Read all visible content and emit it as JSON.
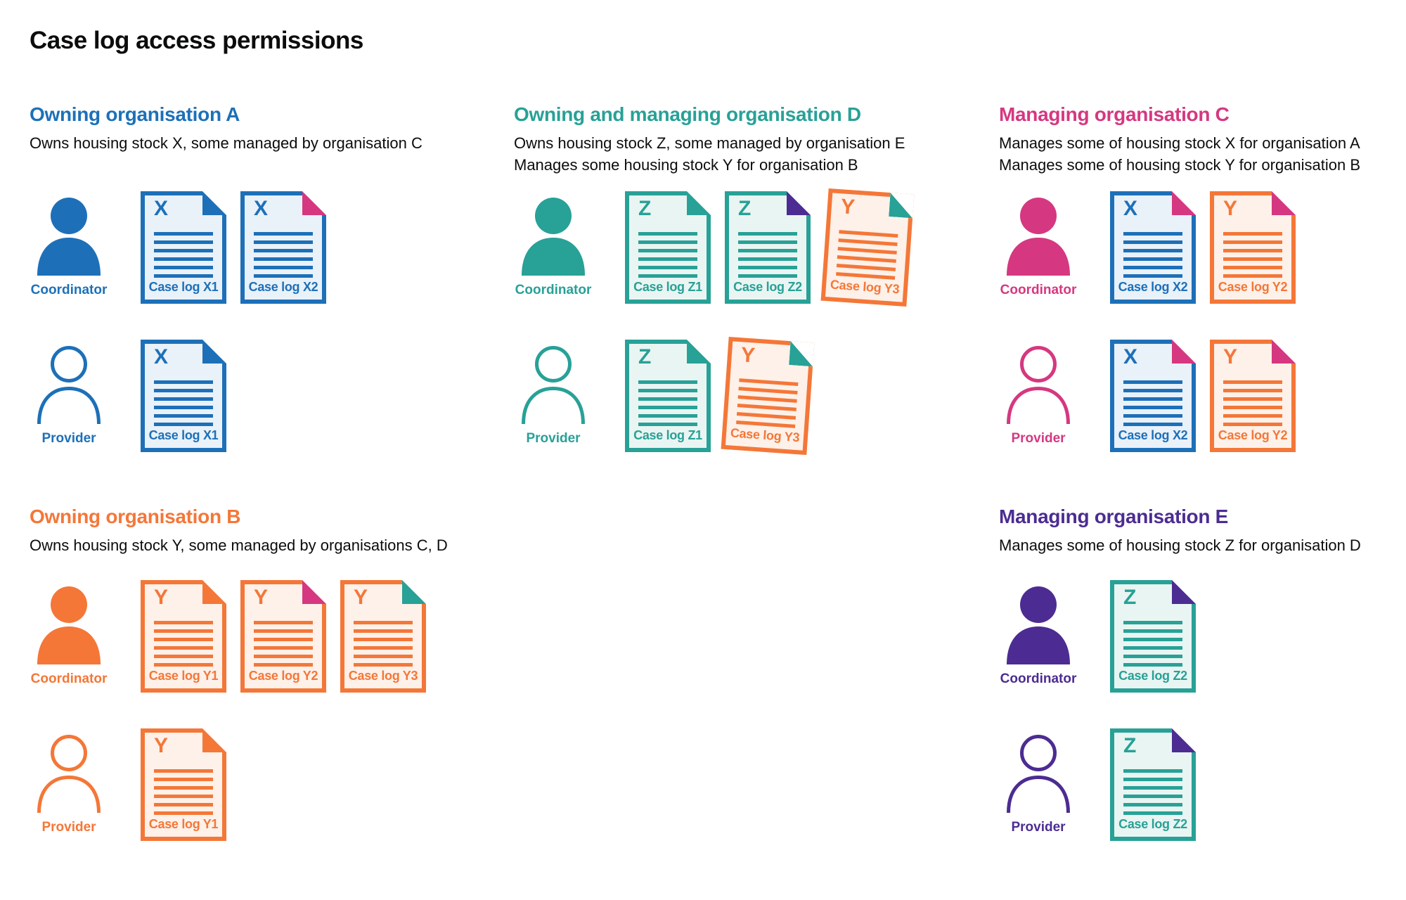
{
  "title": "Case log access permissions",
  "palette": {
    "blue": "#1d70b8",
    "teal": "#28a197",
    "pink": "#d53880",
    "orange": "#f47738",
    "purple": "#4c2c92",
    "text": "#0b0c0c",
    "doc_bg": {
      "blue": "#e9f1f9",
      "teal": "#e9f5f2",
      "orange": "#fdf1e9"
    }
  },
  "sections": [
    {
      "name": "owning-organisation-a",
      "title": "Owning organisation A",
      "color": "blue",
      "description": [
        "Owns housing stock X, some managed by organisation C"
      ],
      "rows": [
        {
          "role": "Coordinator",
          "person": "filled",
          "icon": "coordinator-person-icon",
          "docs": [
            {
              "letter": "X",
              "label": "Case log X1",
              "color": "blue",
              "fold": "blue"
            },
            {
              "letter": "X",
              "label": "Case log X2",
              "color": "blue",
              "fold": "pink"
            }
          ]
        },
        {
          "role": "Provider",
          "person": "outline",
          "icon": "provider-person-icon",
          "docs": [
            {
              "letter": "X",
              "label": "Case log X1",
              "color": "blue",
              "fold": "blue"
            }
          ]
        }
      ]
    },
    {
      "name": "owning-and-managing-organisation-d",
      "title": "Owning and managing organisation D",
      "color": "teal",
      "description": [
        "Owns housing stock Z, some managed by organisation E",
        "Manages some housing stock Y for organisation B"
      ],
      "rows": [
        {
          "role": "Coordinator",
          "person": "filled",
          "icon": "coordinator-person-icon",
          "docs": [
            {
              "letter": "Z",
              "label": "Case log Z1",
              "color": "teal",
              "fold": "teal"
            },
            {
              "letter": "Z",
              "label": "Case log Z2",
              "color": "teal",
              "fold": "purple"
            },
            {
              "letter": "Y",
              "label": "Case log Y3",
              "color": "orange",
              "fold": "teal",
              "tilt": true
            }
          ]
        },
        {
          "role": "Provider",
          "person": "outline",
          "icon": "provider-person-icon",
          "docs": [
            {
              "letter": "Z",
              "label": "Case log Z1",
              "color": "teal",
              "fold": "teal"
            },
            {
              "letter": "Y",
              "label": "Case log Y3",
              "color": "orange",
              "fold": "teal",
              "tilt": true
            }
          ]
        }
      ]
    },
    {
      "name": "managing-organisation-c",
      "title": "Managing organisation C",
      "color": "pink",
      "description": [
        "Manages some of housing stock X for organisation A",
        "Manages some of housing stock Y for organisation B"
      ],
      "rows": [
        {
          "role": "Coordinator",
          "person": "filled",
          "icon": "coordinator-person-icon",
          "docs": [
            {
              "letter": "X",
              "label": "Case log X2",
              "color": "blue",
              "fold": "pink"
            },
            {
              "letter": "Y",
              "label": "Case log Y2",
              "color": "orange",
              "fold": "pink"
            }
          ]
        },
        {
          "role": "Provider",
          "person": "outline",
          "icon": "provider-person-icon",
          "docs": [
            {
              "letter": "X",
              "label": "Case log X2",
              "color": "blue",
              "fold": "pink"
            },
            {
              "letter": "Y",
              "label": "Case log Y2",
              "color": "orange",
              "fold": "pink"
            }
          ]
        }
      ]
    },
    {
      "name": "owning-organisation-b",
      "title": "Owning organisation B",
      "color": "orange",
      "description": [
        "Owns housing stock Y, some managed by organisations C, D"
      ],
      "rows": [
        {
          "role": "Coordinator",
          "person": "filled",
          "icon": "coordinator-person-icon",
          "docs": [
            {
              "letter": "Y",
              "label": "Case log Y1",
              "color": "orange",
              "fold": "orange"
            },
            {
              "letter": "Y",
              "label": "Case log Y2",
              "color": "orange",
              "fold": "pink"
            },
            {
              "letter": "Y",
              "label": "Case log Y3",
              "color": "orange",
              "fold": "teal"
            }
          ]
        },
        {
          "role": "Provider",
          "person": "outline",
          "icon": "provider-person-icon",
          "docs": [
            {
              "letter": "Y",
              "label": "Case log Y1",
              "color": "orange",
              "fold": "orange"
            }
          ]
        }
      ]
    },
    {
      "name": "managing-organisation-e",
      "title": "Managing organisation E",
      "color": "purple",
      "description": [
        "Manages some of housing stock Z for organisation D"
      ],
      "rows": [
        {
          "role": "Coordinator",
          "person": "filled",
          "icon": "coordinator-person-icon",
          "docs": [
            {
              "letter": "Z",
              "label": "Case log Z2",
              "color": "teal",
              "fold": "purple"
            }
          ]
        },
        {
          "role": "Provider",
          "person": "outline",
          "icon": "provider-person-icon",
          "docs": [
            {
              "letter": "Z",
              "label": "Case log Z2",
              "color": "teal",
              "fold": "purple"
            }
          ]
        }
      ]
    }
  ]
}
